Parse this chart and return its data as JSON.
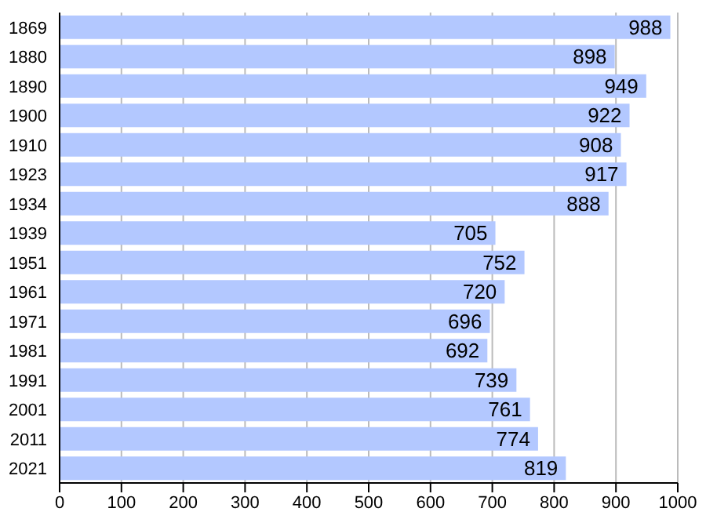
{
  "chart_data": {
    "type": "bar",
    "orientation": "horizontal",
    "categories": [
      "1869",
      "1880",
      "1890",
      "1900",
      "1910",
      "1923",
      "1934",
      "1939",
      "1951",
      "1961",
      "1971",
      "1981",
      "1991",
      "2001",
      "2011",
      "2021"
    ],
    "values": [
      988,
      898,
      949,
      922,
      908,
      917,
      888,
      705,
      752,
      720,
      696,
      692,
      739,
      761,
      774,
      819
    ],
    "color": "#b3c8ff",
    "xlim": [
      0,
      1000
    ],
    "xticks": [
      0,
      100,
      200,
      300,
      400,
      500,
      600,
      700,
      800,
      900,
      1000
    ],
    "grid": "x",
    "data_labels": true
  }
}
